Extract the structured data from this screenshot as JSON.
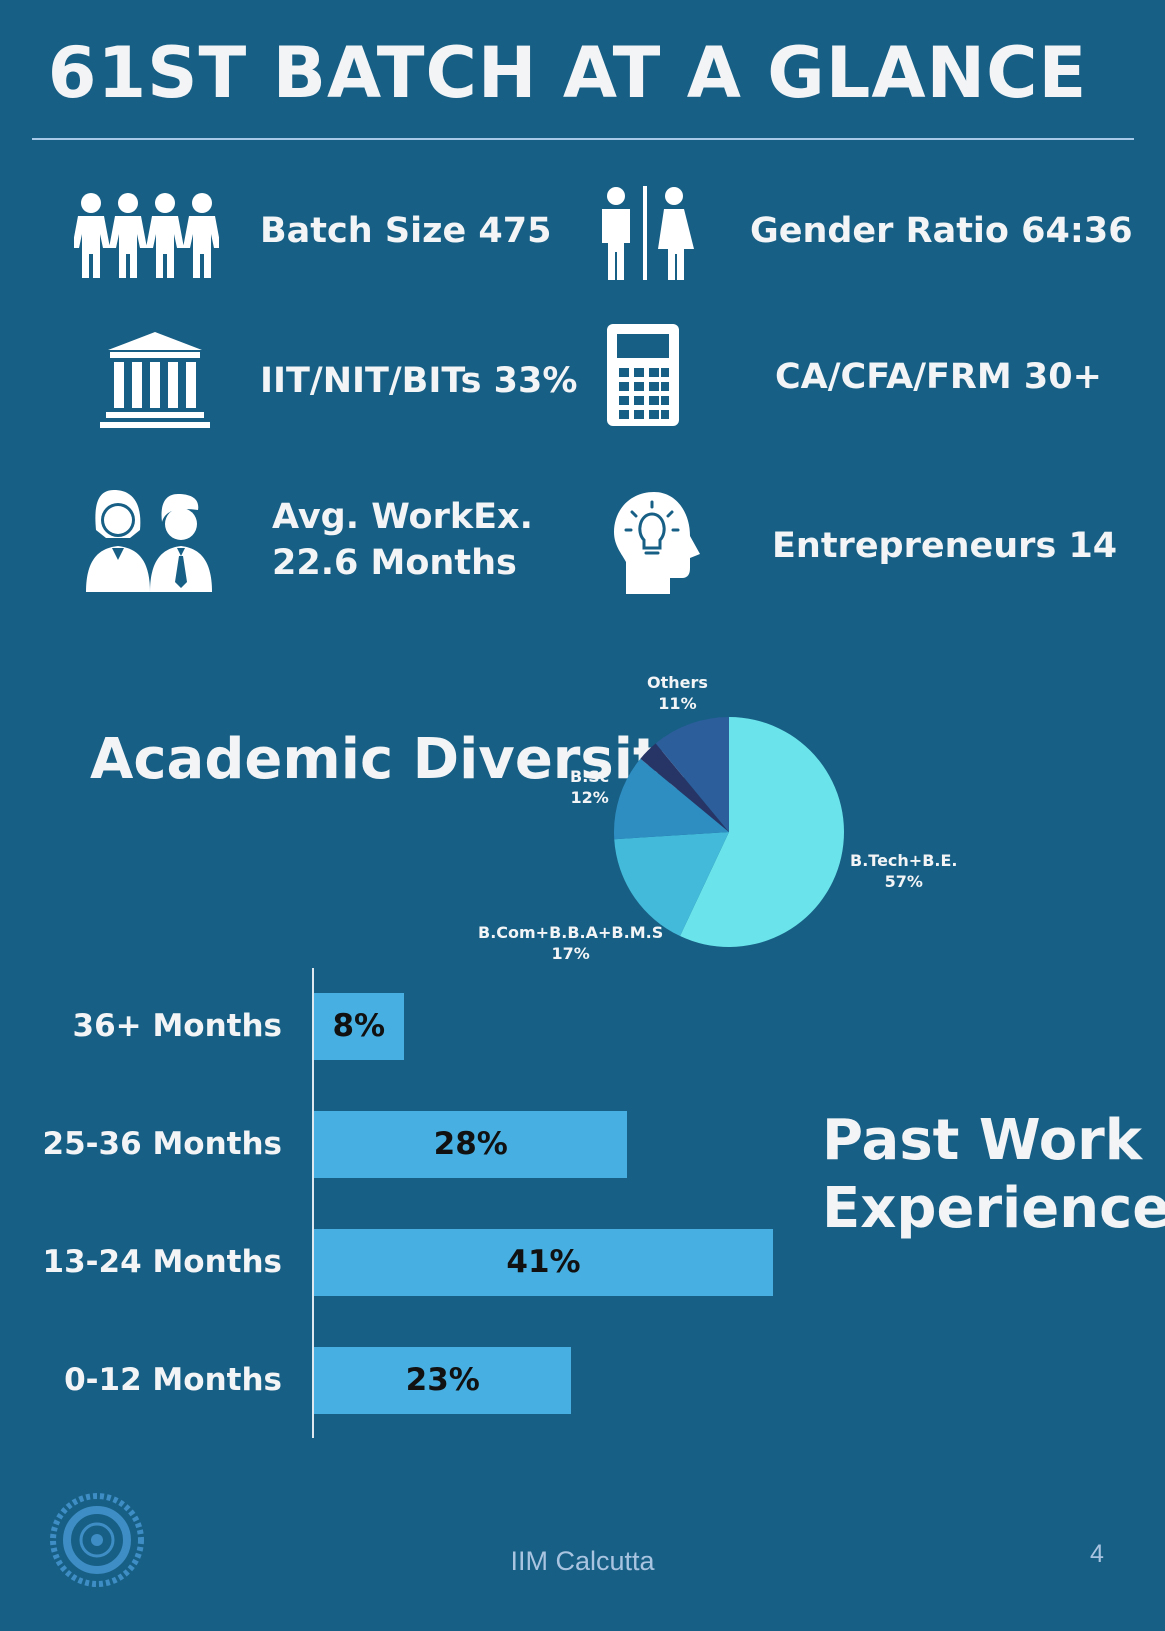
{
  "header": {
    "title": "61ST BATCH AT A GLANCE"
  },
  "stats": {
    "batch_size": "Batch Size 475",
    "gender_ratio": "Gender Ratio 64:36",
    "iit_nit_bits": "IIT/NIT/BITs 33%",
    "ca_cfa_frm": "CA/CFA/FRM 30+",
    "workex_line1": "Avg. WorkEx.",
    "workex_line2": "22.6 Months",
    "entrepreneurs": "Entrepreneurs 14"
  },
  "icons": {
    "batch": "group-people-icon",
    "gender": "man-woman-icon",
    "institute": "institution-building-icon",
    "calculator": "calculator-icon",
    "workex": "professionals-icon",
    "idea": "lightbulb-head-icon",
    "logo": "iim-calcutta-logo"
  },
  "colors": {
    "background": "#175f85",
    "bar": "#47afe1",
    "pie_btech": "#6ae4ea",
    "pie_bcom": "#43bad9",
    "pie_bsc": "#2e8dc1",
    "pie_others_dark": "#273566",
    "pie_others": "#2b5e9a"
  },
  "chart_data": [
    {
      "type": "pie",
      "title": "Academic Diversity",
      "slices": [
        {
          "label": "B.Tech+B.E.",
          "value": 57,
          "display": "57%"
        },
        {
          "label": "B.Com+B.B.A+B.M.S",
          "value": 17,
          "display": "17%"
        },
        {
          "label": "B.Sc",
          "value": 12,
          "display": "12%"
        },
        {
          "label": "",
          "value": 3,
          "display": ""
        },
        {
          "label": "Others",
          "value": 11,
          "display": "11%"
        }
      ]
    },
    {
      "type": "bar",
      "orientation": "horizontal",
      "title": "Past Work Experience",
      "categories": [
        "36+ Months",
        "25-36 Months",
        "13-24 Months",
        "0-12 Months"
      ],
      "values": [
        8,
        28,
        41,
        23
      ],
      "value_labels": [
        "8%",
        "28%",
        "41%",
        "23%"
      ],
      "xlim": [
        0,
        41
      ]
    }
  ],
  "footer": {
    "text": "IIM Calcutta",
    "page_number": "4"
  }
}
